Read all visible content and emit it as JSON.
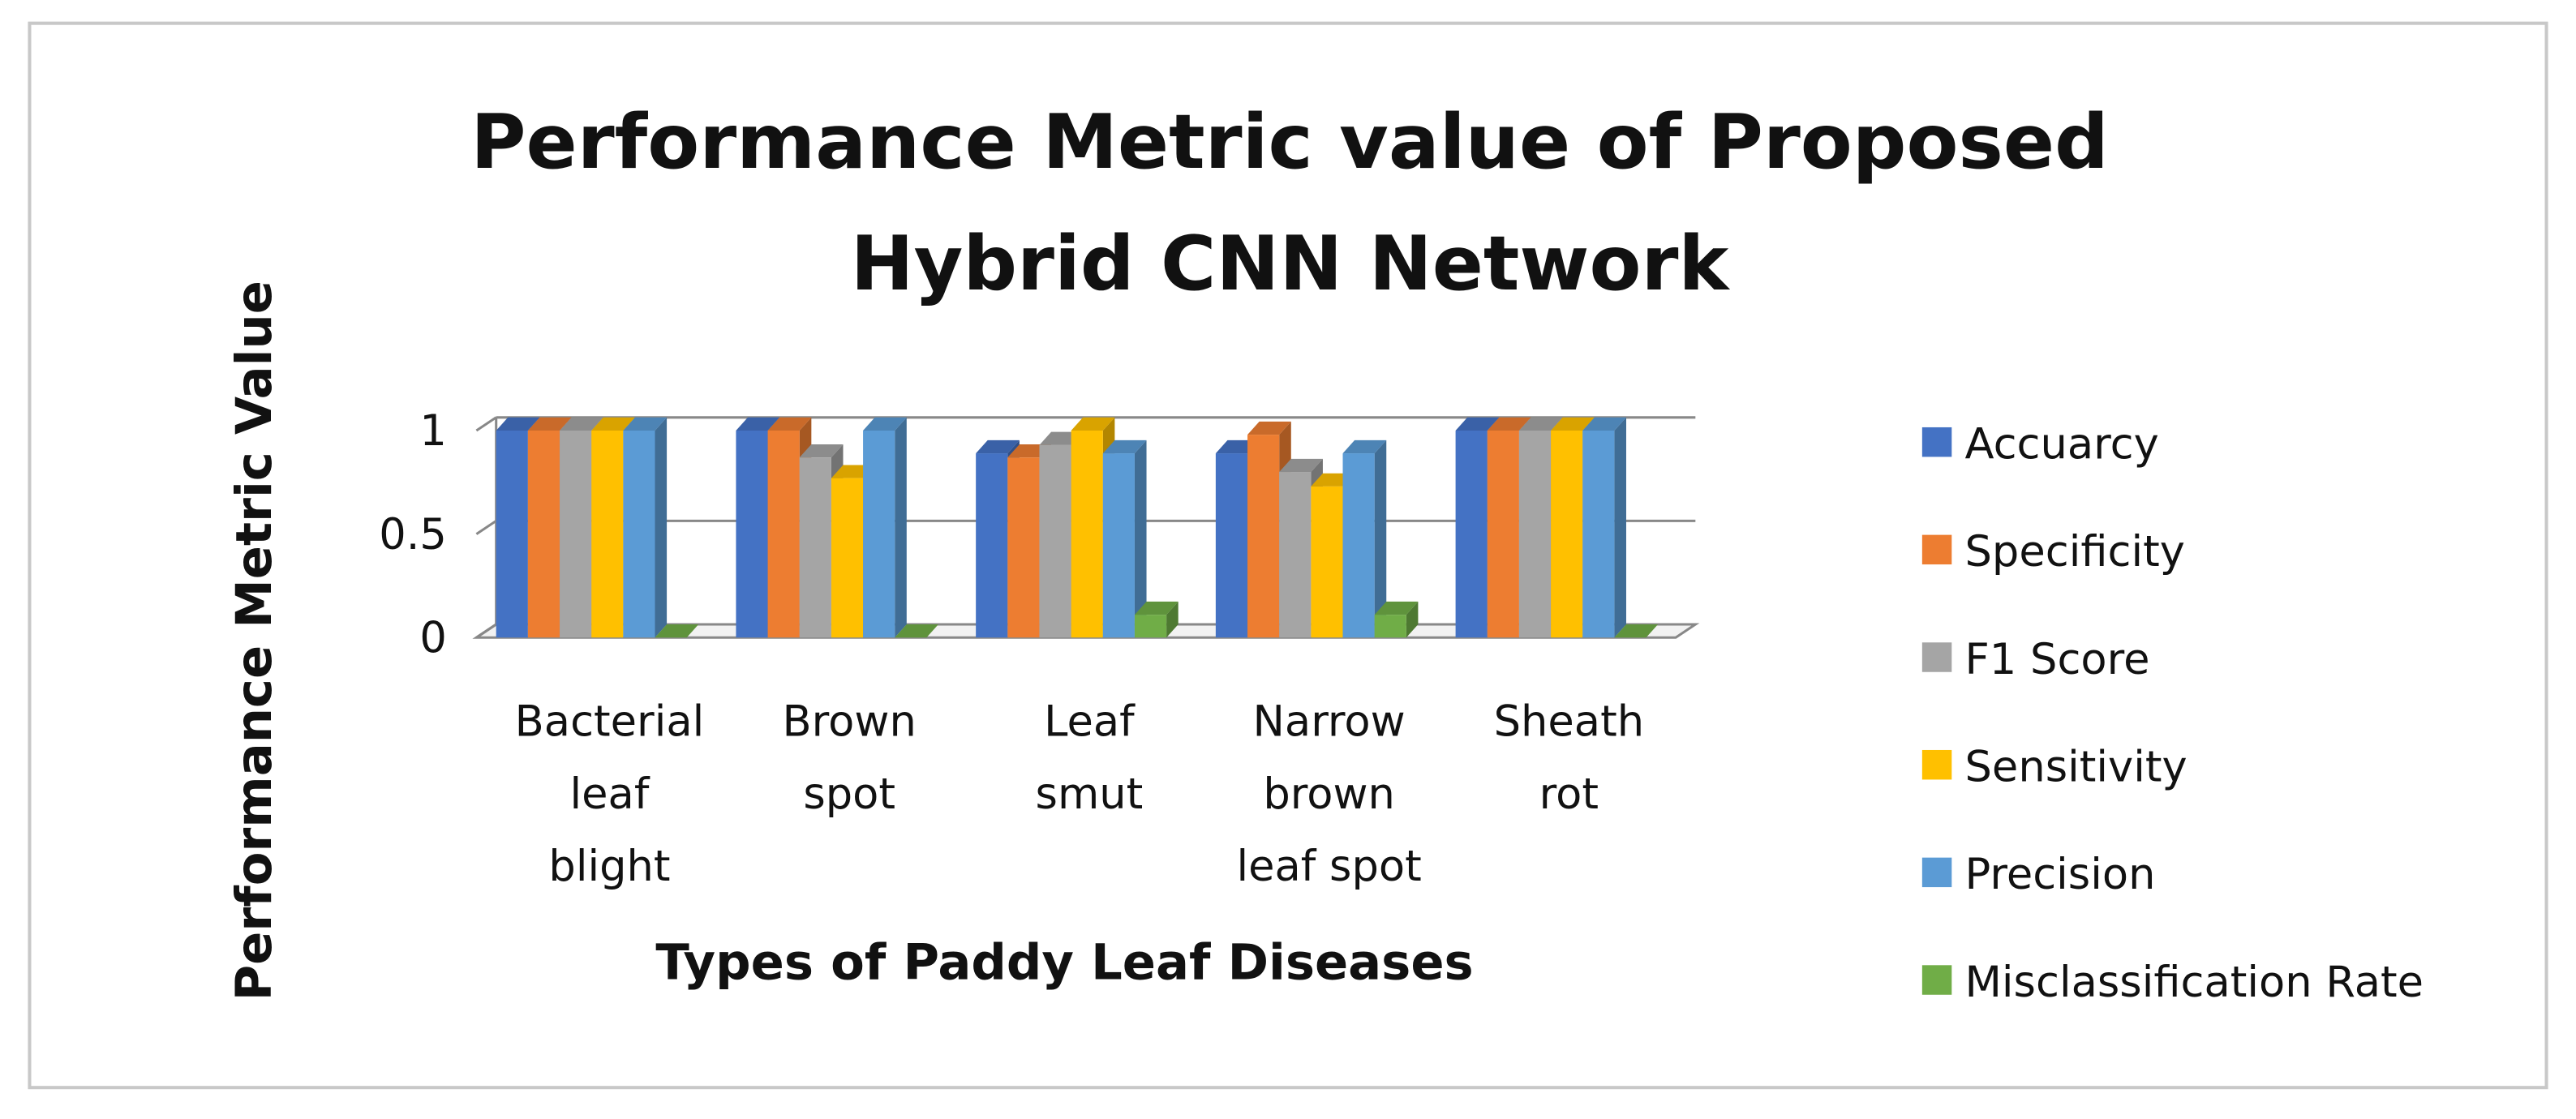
{
  "chart_data": {
    "type": "bar3d",
    "title": "Performance Metric value of Proposed\nHybrid CNN Network",
    "x_label": "Types of Paddy Leaf Diseases",
    "y_label": "Performance Metric Value",
    "categories": [
      "Bacterial\nleaf\nblight",
      "Brown\nspot",
      "Leaf\nsmut",
      "Narrow\nbrown\nleaf spot",
      "Sheath\nrot"
    ],
    "series": [
      {
        "name": "Accuarcy",
        "color": "#4472c4",
        "values": [
          1,
          1,
          0.89,
          0.89,
          1
        ]
      },
      {
        "name": "Specificity",
        "color": "#ed7d31",
        "values": [
          1,
          1,
          0.87,
          0.98,
          1
        ]
      },
      {
        "name": "F1 Score",
        "color": "#a5a5a5",
        "values": [
          1,
          0.87,
          0.93,
          0.8,
          1
        ]
      },
      {
        "name": "Sensitivity",
        "color": "#ffc000",
        "values": [
          1,
          0.77,
          1,
          0.73,
          1
        ]
      },
      {
        "name": "Precision",
        "color": "#5b9bd5",
        "values": [
          1,
          1,
          0.89,
          0.89,
          1
        ]
      },
      {
        "name": "Misclassification Rate",
        "color": "#70ad47",
        "values": [
          0,
          0,
          0.11,
          0.11,
          0
        ]
      }
    ],
    "ylim": [
      0,
      1
    ],
    "yticks": [
      0,
      0.5,
      1
    ],
    "grid": true,
    "legend": "right"
  }
}
